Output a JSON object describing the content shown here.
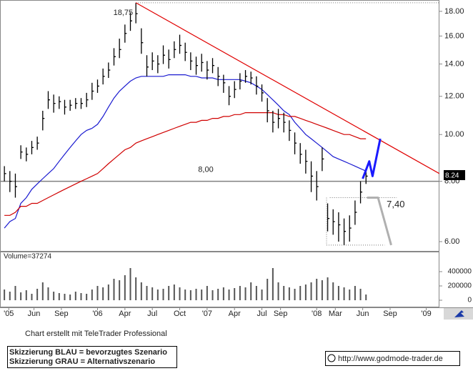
{
  "chart_data": [
    {
      "type": "ohlc",
      "x": [
        2005.15,
        2005.2,
        2005.25,
        2005.3,
        2005.35,
        2005.4,
        2005.45,
        2005.5,
        2005.55,
        2005.6,
        2005.65,
        2005.7,
        2005.75,
        2005.8,
        2005.85,
        2005.9,
        2005.95,
        2006,
        2006.05,
        2006.1,
        2006.15,
        2006.2,
        2006.25,
        2006.3,
        2006.35,
        2006.4,
        2006.45,
        2006.5,
        2006.55,
        2006.6,
        2006.65,
        2006.7,
        2006.75,
        2006.8,
        2006.85,
        2006.9,
        2006.95,
        2007,
        2007.05,
        2007.1,
        2007.15,
        2007.2,
        2007.25,
        2007.3,
        2007.35,
        2007.4,
        2007.45,
        2007.5,
        2007.55,
        2007.6,
        2007.65,
        2007.7,
        2007.75,
        2007.8,
        2007.85,
        2007.9,
        2007.95,
        2008,
        2008.05,
        2008.1,
        2008.15,
        2008.2,
        2008.25,
        2008.3,
        2008.35,
        2008.4,
        2008.45
      ],
      "high": [
        8.6,
        8.4,
        8.3,
        9.5,
        9.4,
        9.7,
        9.9,
        11.2,
        12.3,
        12.1,
        12.0,
        11.8,
        11.8,
        11.9,
        11.9,
        12.2,
        12.8,
        13.0,
        13.7,
        14.1,
        15.1,
        15.8,
        16.9,
        17.9,
        18.75,
        16.6,
        14.6,
        14.8,
        14.6,
        15.3,
        15.0,
        15.6,
        16.1,
        15.5,
        14.8,
        14.5,
        14.7,
        14.2,
        14.4,
        13.8,
        13.3,
        12.6,
        12.9,
        13.4,
        13.6,
        13.5,
        13.2,
        12.7,
        11.9,
        11.2,
        11.3,
        11.1,
        10.7,
        10.1,
        9.6,
        9.3,
        8.8,
        8.4,
        9.4,
        7.2,
        7.0,
        6.9,
        6.7,
        6.8,
        7.3,
        8.0,
        8.4
      ],
      "low": [
        8.0,
        7.6,
        7.4,
        8.9,
        8.8,
        9.1,
        9.3,
        10.2,
        11.3,
        11.1,
        11.3,
        11.0,
        11.2,
        11.3,
        11.3,
        11.4,
        11.8,
        12.2,
        12.7,
        13.1,
        13.9,
        14.4,
        15.5,
        16.4,
        17.0,
        14.7,
        13.2,
        13.6,
        13.4,
        14.0,
        13.7,
        14.4,
        14.7,
        14.2,
        13.6,
        13.3,
        13.5,
        13.0,
        13.4,
        12.6,
        12.2,
        11.5,
        11.9,
        12.4,
        12.8,
        12.7,
        12.1,
        11.7,
        10.6,
        10.1,
        10.3,
        10.1,
        9.7,
        9.1,
        8.7,
        8.3,
        7.6,
        7.3,
        8.4,
        6.3,
        6.2,
        6.0,
        5.9,
        6.0,
        6.5,
        7.2,
        7.9
      ],
      "close": [
        8.3,
        8.0,
        7.8,
        9.2,
        9.1,
        9.4,
        9.6,
        10.8,
        11.8,
        11.6,
        11.7,
        11.4,
        11.5,
        11.6,
        11.6,
        11.8,
        12.3,
        12.6,
        13.2,
        13.6,
        14.5,
        15.0,
        16.2,
        17.2,
        17.8,
        15.5,
        13.8,
        14.2,
        14.0,
        14.6,
        14.3,
        15.0,
        15.3,
        14.8,
        14.2,
        13.9,
        14.1,
        13.6,
        13.9,
        13.2,
        12.8,
        12.0,
        12.4,
        12.9,
        13.2,
        13.1,
        12.6,
        12.2,
        11.2,
        10.6,
        10.8,
        10.6,
        10.2,
        9.6,
        9.1,
        8.8,
        8.2,
        7.8,
        8.9,
        6.7,
        6.6,
        6.5,
        6.3,
        6.4,
        6.9,
        7.6,
        8.2
      ],
      "color": "#000000",
      "moving_averages": [
        {
          "color": "#1a1ad0",
          "values": [
            6.4,
            6.6,
            6.7,
            7.2,
            7.4,
            7.7,
            7.9,
            8.1,
            8.3,
            8.5,
            8.8,
            9.1,
            9.4,
            9.7,
            10.0,
            10.2,
            10.3,
            10.5,
            10.9,
            11.4,
            11.9,
            12.3,
            12.6,
            12.9,
            13.1,
            13.2,
            13.2,
            13.2,
            13.2,
            13.2,
            13.3,
            13.3,
            13.3,
            13.3,
            13.2,
            13.2,
            13.1,
            13.1,
            13.1,
            13.0,
            13.0,
            13.0,
            13.0,
            13.0,
            12.9,
            12.8,
            12.6,
            12.4,
            12.1,
            11.8,
            11.5,
            11.2,
            11.0,
            10.6,
            10.3,
            10.0,
            9.8,
            9.6,
            9.4,
            9.2,
            9.0,
            8.9,
            8.8,
            8.7,
            8.6,
            8.5,
            8.4
          ]
        },
        {
          "color": "#d00000",
          "values": [
            6.8,
            6.8,
            6.9,
            7.1,
            7.1,
            7.2,
            7.2,
            7.3,
            7.4,
            7.5,
            7.6,
            7.7,
            7.8,
            7.9,
            8.0,
            8.1,
            8.2,
            8.3,
            8.5,
            8.7,
            8.9,
            9.1,
            9.3,
            9.4,
            9.6,
            9.7,
            9.8,
            9.9,
            10.0,
            10.1,
            10.2,
            10.3,
            10.4,
            10.5,
            10.6,
            10.6,
            10.7,
            10.7,
            10.8,
            10.8,
            10.9,
            10.9,
            11.0,
            11.0,
            11.1,
            11.1,
            11.1,
            11.1,
            11.1,
            11.1,
            11.0,
            11.0,
            10.9,
            10.9,
            10.8,
            10.7,
            10.6,
            10.5,
            10.4,
            10.3,
            10.2,
            10.1,
            10.0,
            10.0,
            9.9,
            9.8,
            9.8
          ]
        }
      ],
      "log_scale": true,
      "xlim": [
        2005.11,
        2009.12
      ],
      "ylim": [
        5.72,
        19.0
      ],
      "yticks": [
        {
          "value": 6,
          "label": "6.00"
        },
        {
          "value": 8,
          "label": "8.00"
        },
        {
          "value": 10,
          "label": "10.00"
        },
        {
          "value": 12,
          "label": "12.00"
        },
        {
          "value": 14,
          "label": "14.00"
        },
        {
          "value": 16,
          "label": "16.00"
        },
        {
          "value": 18,
          "label": "18.00"
        }
      ],
      "xticks": [
        {
          "value": 2005.19,
          "label": "'05"
        },
        {
          "value": 2005.42,
          "label": "Jun"
        },
        {
          "value": 2005.67,
          "label": "Sep"
        },
        {
          "value": 2006.0,
          "label": "'06"
        },
        {
          "value": 2006.25,
          "label": "Apr"
        },
        {
          "value": 2006.5,
          "label": "Jul"
        },
        {
          "value": 2006.75,
          "label": "Oct"
        },
        {
          "value": 2007.0,
          "label": "'07"
        },
        {
          "value": 2007.25,
          "label": "Apr"
        },
        {
          "value": 2007.5,
          "label": "Jul"
        },
        {
          "value": 2007.67,
          "label": "Sep"
        },
        {
          "value": 2008.0,
          "label": "'08"
        },
        {
          "value": 2008.17,
          "label": "Mar"
        },
        {
          "value": 2008.42,
          "label": "Jun"
        },
        {
          "value": 2008.67,
          "label": "Sep"
        },
        {
          "value": 2009.0,
          "label": "'09"
        }
      ],
      "peak": {
        "x": 2006.35,
        "value": 18.75,
        "label": "18,75"
      },
      "hline": {
        "value": 8,
        "label": "8,00",
        "color": "#808080"
      },
      "trendline": {
        "color": "#e00000",
        "x": [
          2006.35,
          2009.12
        ],
        "values": [
          18.75,
          8.3
        ]
      },
      "range_lines": [
        {
          "x": [
            2008.12,
            2008.73
          ],
          "value": 7.4,
          "label": "7,40"
        },
        {
          "x": [
            2008.09,
            2008.62
          ],
          "value": 5.9
        }
      ],
      "sketches": [
        {
          "color": "#1a1aff",
          "x": [
            2008.42,
            2008.48,
            2008.51,
            2008.58
          ],
          "values": [
            8.1,
            8.8,
            8.2,
            9.8
          ]
        },
        {
          "color": "#b0b0b0",
          "x": [
            2008.46,
            2008.56,
            2008.68
          ],
          "values": [
            7.4,
            7.4,
            5.9
          ]
        }
      ],
      "last_price": 8.24
    },
    {
      "type": "bar",
      "title": "Volume=37274",
      "x": [
        2005.15,
        2005.2,
        2005.25,
        2005.3,
        2005.35,
        2005.4,
        2005.45,
        2005.5,
        2005.55,
        2005.6,
        2005.65,
        2005.7,
        2005.75,
        2005.8,
        2005.85,
        2005.9,
        2005.95,
        2006,
        2006.05,
        2006.1,
        2006.15,
        2006.2,
        2006.25,
        2006.3,
        2006.35,
        2006.4,
        2006.45,
        2006.5,
        2006.55,
        2006.6,
        2006.65,
        2006.7,
        2006.75,
        2006.8,
        2006.85,
        2006.9,
        2006.95,
        2007,
        2007.05,
        2007.1,
        2007.15,
        2007.2,
        2007.25,
        2007.3,
        2007.35,
        2007.4,
        2007.45,
        2007.5,
        2007.55,
        2007.6,
        2007.65,
        2007.7,
        2007.75,
        2007.8,
        2007.85,
        2007.9,
        2007.95,
        2008,
        2008.05,
        2008.1,
        2008.15,
        2008.2,
        2008.25,
        2008.3,
        2008.35,
        2008.4,
        2008.45
      ],
      "values": [
        150000,
        120000,
        200000,
        110000,
        140000,
        90000,
        160000,
        250000,
        180000,
        120000,
        100000,
        90000,
        80000,
        120000,
        100000,
        90000,
        150000,
        200000,
        180000,
        220000,
        300000,
        280000,
        350000,
        450000,
        320000,
        250000,
        200000,
        180000,
        150000,
        160000,
        200000,
        220000,
        180000,
        150000,
        140000,
        160000,
        150000,
        200000,
        140000,
        160000,
        180000,
        150000,
        170000,
        200000,
        180000,
        250000,
        200000,
        150000,
        300000,
        450000,
        250000,
        200000,
        180000,
        160000,
        200000,
        220000,
        250000,
        300000,
        280000,
        320000,
        250000,
        200000,
        180000,
        150000,
        200000,
        160000,
        80000
      ],
      "color": "#555555",
      "xlim": [
        2005.11,
        2009.12
      ],
      "ylim": [
        0,
        600000
      ],
      "yticks": [
        0,
        200000,
        400000
      ]
    }
  ],
  "footer": {
    "credit": "Chart erstellt mit TeleTrader Professional",
    "legend": [
      "Skizzierung BLAU = bevorzugtes Szenario",
      "Skizzierung GRAU = Alternativszenario"
    ],
    "url": "http://www.godmode-trader.de"
  }
}
